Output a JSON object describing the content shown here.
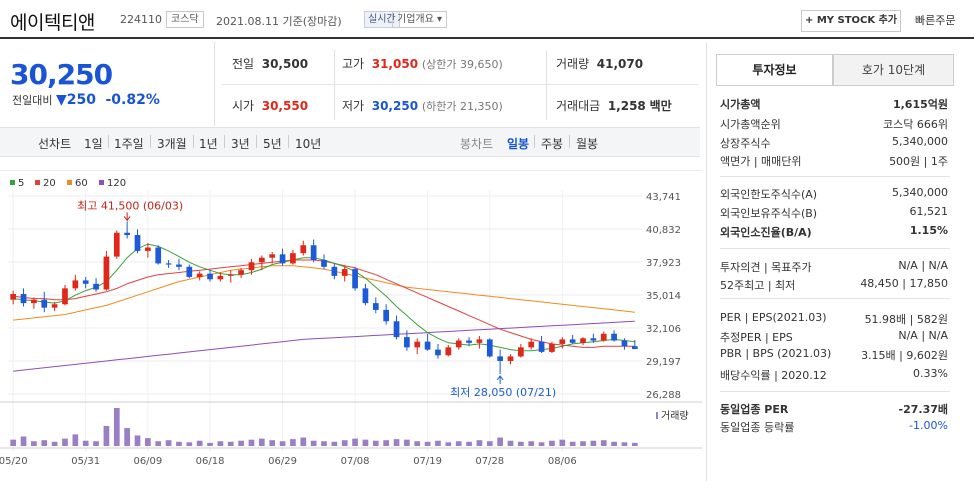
{
  "header": {
    "company": "에이텍티앤",
    "code": "224110",
    "market": "코스닥",
    "date": "2021.08.11 기준(장마감)",
    "live": "실시간",
    "corp_info": "기업개요",
    "my_stock": "+ MY STOCK 추가",
    "quick_order": "빠른주문"
  },
  "quote": {
    "price": "30,250",
    "change_label": "전일대비",
    "change": "250",
    "change_pct": "-0.82%",
    "prev_close_label": "전일",
    "prev_close": "30,500",
    "high_label": "고가",
    "high": "31,050",
    "upper_limit": "(상한가 39,650)",
    "volume_label": "거래량",
    "volume": "41,070",
    "open_label": "시가",
    "open": "30,550",
    "low_label": "저가",
    "low": "30,250",
    "lower_limit": "(하한가 21,350)",
    "amount_label": "거래대금",
    "amount": "1,258",
    "amount_unit": "백만"
  },
  "periods": {
    "line_label": "선차트",
    "line": [
      "1일",
      "1주일",
      "3개월",
      "1년",
      "3년",
      "5년",
      "10년"
    ],
    "candle_label": "봉차트",
    "candle": [
      "일봉",
      "주봉",
      "월봉"
    ]
  },
  "chart_data": {
    "type": "candlestick",
    "title": "",
    "legend": [
      "5",
      "20",
      "60",
      "120"
    ],
    "legend_colors": [
      "#3aa03a",
      "#e04040",
      "#f08c1e",
      "#8b4fb8"
    ],
    "y_ticks": [
      "43,741",
      "40,832",
      "37,923",
      "35,014",
      "32,106",
      "29,197",
      "26,288"
    ],
    "ylim": [
      26288,
      43741
    ],
    "x_labels": [
      "05/20",
      "05/31",
      "06/09",
      "06/18",
      "06/29",
      "07/08",
      "07/19",
      "07/28",
      "08/06"
    ],
    "x_label_index": [
      0,
      7,
      13,
      19,
      26,
      33,
      40,
      46,
      53
    ],
    "high_annotation": "최고 41,500 (06/03)",
    "low_annotation": "최저 28,050 (07/21)",
    "volume_label": "거래량",
    "candles": [
      [
        34600,
        35400,
        34200,
        35100
      ],
      [
        35100,
        35600,
        34000,
        34300
      ],
      [
        34300,
        34800,
        33800,
        34600
      ],
      [
        34600,
        35300,
        33500,
        33900
      ],
      [
        33900,
        34400,
        33600,
        34200
      ],
      [
        34200,
        35900,
        34100,
        35600
      ],
      [
        35600,
        36800,
        35400,
        36300
      ],
      [
        36300,
        36600,
        35600,
        36000
      ],
      [
        36000,
        36500,
        35300,
        35500
      ],
      [
        35500,
        38900,
        35400,
        38400
      ],
      [
        38400,
        40700,
        38200,
        40500
      ],
      [
        40500,
        41500,
        40000,
        40300
      ],
      [
        40300,
        40800,
        38700,
        38900
      ],
      [
        38900,
        39600,
        38300,
        39200
      ],
      [
        39200,
        39400,
        37700,
        37800
      ],
      [
        37800,
        38100,
        37400,
        37700
      ],
      [
        37700,
        38200,
        37200,
        37500
      ],
      [
        37500,
        37700,
        36500,
        36600
      ],
      [
        36600,
        37100,
        36300,
        36900
      ],
      [
        36900,
        37200,
        36200,
        36400
      ],
      [
        36400,
        37000,
        36200,
        36700
      ],
      [
        36700,
        37200,
        36100,
        36800
      ],
      [
        36800,
        37400,
        36500,
        37200
      ],
      [
        37200,
        38200,
        36800,
        37900
      ],
      [
        37900,
        38500,
        37200,
        38300
      ],
      [
        38300,
        38800,
        37800,
        38600
      ],
      [
        38600,
        39100,
        37600,
        37800
      ],
      [
        37800,
        39000,
        37700,
        38700
      ],
      [
        38700,
        39800,
        38500,
        39400
      ],
      [
        39400,
        39900,
        37900,
        38100
      ],
      [
        38100,
        38600,
        37300,
        37500
      ],
      [
        37500,
        37800,
        36400,
        36700
      ],
      [
        36700,
        37600,
        36200,
        37300
      ],
      [
        37300,
        37500,
        35400,
        35600
      ],
      [
        35600,
        36000,
        34100,
        34300
      ],
      [
        34300,
        34800,
        33400,
        33700
      ],
      [
        33700,
        34200,
        32400,
        32700
      ],
      [
        32700,
        33200,
        31100,
        31300
      ],
      [
        31300,
        31900,
        30100,
        30400
      ],
      [
        30400,
        31200,
        29800,
        30900
      ],
      [
        30900,
        31600,
        30100,
        30200
      ],
      [
        30200,
        30700,
        29400,
        29700
      ],
      [
        29700,
        30600,
        29600,
        30400
      ],
      [
        30400,
        31200,
        30200,
        31000
      ],
      [
        31000,
        31300,
        30500,
        30800
      ],
      [
        30800,
        31400,
        30300,
        31100
      ],
      [
        31100,
        31200,
        29500,
        29600
      ],
      [
        29600,
        30200,
        28050,
        29200
      ],
      [
        29200,
        29800,
        28900,
        29600
      ],
      [
        29600,
        30700,
        29500,
        30400
      ],
      [
        30400,
        31200,
        30200,
        30900
      ],
      [
        30900,
        31400,
        29900,
        30000
      ],
      [
        30000,
        30900,
        29900,
        30700
      ],
      [
        30700,
        31300,
        30300,
        31100
      ],
      [
        31100,
        31500,
        30700,
        30800
      ],
      [
        30800,
        31300,
        30600,
        31200
      ],
      [
        31200,
        31600,
        30800,
        31000
      ],
      [
        31000,
        31800,
        30900,
        31600
      ],
      [
        31600,
        31900,
        30900,
        31000
      ],
      [
        31000,
        31200,
        30200,
        30500
      ],
      [
        30500,
        31050,
        30250,
        30250
      ]
    ],
    "volumes": [
      12,
      18,
      9,
      11,
      8,
      14,
      22,
      10,
      9,
      38,
      72,
      34,
      20,
      15,
      9,
      11,
      8,
      7,
      10,
      6,
      9,
      8,
      10,
      12,
      14,
      11,
      9,
      13,
      16,
      10,
      9,
      8,
      11,
      14,
      12,
      10,
      11,
      13,
      12,
      9,
      8,
      10,
      7,
      9,
      8,
      11,
      9,
      16,
      10,
      8,
      9,
      7,
      10,
      12,
      8,
      9,
      10,
      11,
      8,
      7,
      6
    ],
    "ma5": [
      34700,
      34600,
      34500,
      34400,
      34300,
      34500,
      35000,
      35400,
      35700,
      36200,
      37200,
      38300,
      39100,
      39500,
      39300,
      38900,
      38400,
      37900,
      37500,
      37200,
      36900,
      36800,
      36800,
      37000,
      37300,
      37700,
      37900,
      38100,
      38300,
      38300,
      38100,
      37800,
      37500,
      37100,
      36500,
      35700,
      34900,
      34000,
      33200,
      32400,
      31700,
      31200,
      30800,
      30700,
      30600,
      30700,
      30600,
      30400,
      30200,
      30100,
      30100,
      30200,
      30300,
      30500,
      30700,
      30800,
      30900,
      31000,
      31100,
      31000,
      30900
    ],
    "ma20": [
      34900,
      34800,
      34700,
      34700,
      34600,
      34600,
      34700,
      34900,
      35100,
      35300,
      35600,
      36000,
      36300,
      36600,
      36800,
      36900,
      37000,
      37100,
      37200,
      37300,
      37400,
      37500,
      37600,
      37700,
      37800,
      37900,
      38000,
      38100,
      38100,
      38100,
      38000,
      37800,
      37600,
      37400,
      37100,
      36800,
      36400,
      36000,
      35600,
      35200,
      34800,
      34400,
      34000,
      33600,
      33200,
      32800,
      32400,
      32000,
      31700,
      31400,
      31100,
      30900,
      30700,
      30600,
      30500,
      30400,
      30400,
      30500,
      30500,
      30500,
      30500
    ],
    "ma60": [
      32800,
      32900,
      33000,
      33100,
      33200,
      33300,
      33500,
      33700,
      33900,
      34100,
      34400,
      34700,
      35000,
      35300,
      35600,
      35900,
      36200,
      36400,
      36600,
      36800,
      37000,
      37200,
      37300,
      37400,
      37500,
      37600,
      37600,
      37600,
      37500,
      37400,
      37300,
      37100,
      36900,
      36700,
      36500,
      36300,
      36100,
      35900,
      35700,
      35600,
      35500,
      35400,
      35300,
      35200,
      35100,
      35000,
      34900,
      34800,
      34700,
      34600,
      34500,
      34400,
      34300,
      34200,
      34100,
      34000,
      33900,
      33800,
      33700,
      33600,
      33500
    ],
    "ma120": [
      28300,
      28400,
      28500,
      28600,
      28700,
      28800,
      28900,
      29000,
      29100,
      29200,
      29300,
      29400,
      29500,
      29600,
      29700,
      29800,
      29900,
      30000,
      30100,
      30200,
      30300,
      30400,
      30500,
      30600,
      30700,
      30800,
      30900,
      31000,
      31100,
      31150,
      31200,
      31250,
      31300,
      31350,
      31400,
      31450,
      31500,
      31550,
      31600,
      31650,
      31700,
      31750,
      31800,
      31850,
      31900,
      31950,
      32000,
      32050,
      32100,
      32150,
      32200,
      32250,
      32300,
      32350,
      32400,
      32450,
      32500,
      32550,
      32600,
      32650,
      32700
    ]
  },
  "invest": {
    "tab1": "투자정보",
    "tab2": "호가 10단계",
    "rows": [
      {
        "label": "시가총액",
        "value": "1,615억원",
        "bold": true
      },
      {
        "label": "시가총액순위",
        "value": "코스닥 666위"
      },
      {
        "label": "상장주식수",
        "value": "5,340,000"
      },
      {
        "label": "액면가 | 매매단위",
        "value": "500원 | 1주"
      },
      {
        "label": "외국인한도주식수(A)",
        "value": "5,340,000"
      },
      {
        "label": "외국인보유주식수(B)",
        "value": "61,521"
      },
      {
        "label": "외국인소진율(B/A)",
        "value": "1.15%",
        "bold": true
      },
      {
        "label": "투자의견 | 목표주가",
        "value": "N/A | N/A"
      },
      {
        "label": "52주최고 | 최저",
        "value": "48,450 | 17,850"
      },
      {
        "label": "PER | EPS(2021.03)",
        "value": "51.98배 | 582원"
      },
      {
        "label": "추정PER | EPS",
        "value": "N/A | N/A"
      },
      {
        "label": "PBR | BPS (2021.03)",
        "value": "3.15배 | 9,602원"
      },
      {
        "label": "배당수익률 | 2020.12",
        "value": "0.33%"
      },
      {
        "label": "동일업종 PER",
        "value": "-27.37배",
        "bold": true
      },
      {
        "label": "동일업종 등락률",
        "value": "-1.00%",
        "blue": true
      }
    ]
  }
}
